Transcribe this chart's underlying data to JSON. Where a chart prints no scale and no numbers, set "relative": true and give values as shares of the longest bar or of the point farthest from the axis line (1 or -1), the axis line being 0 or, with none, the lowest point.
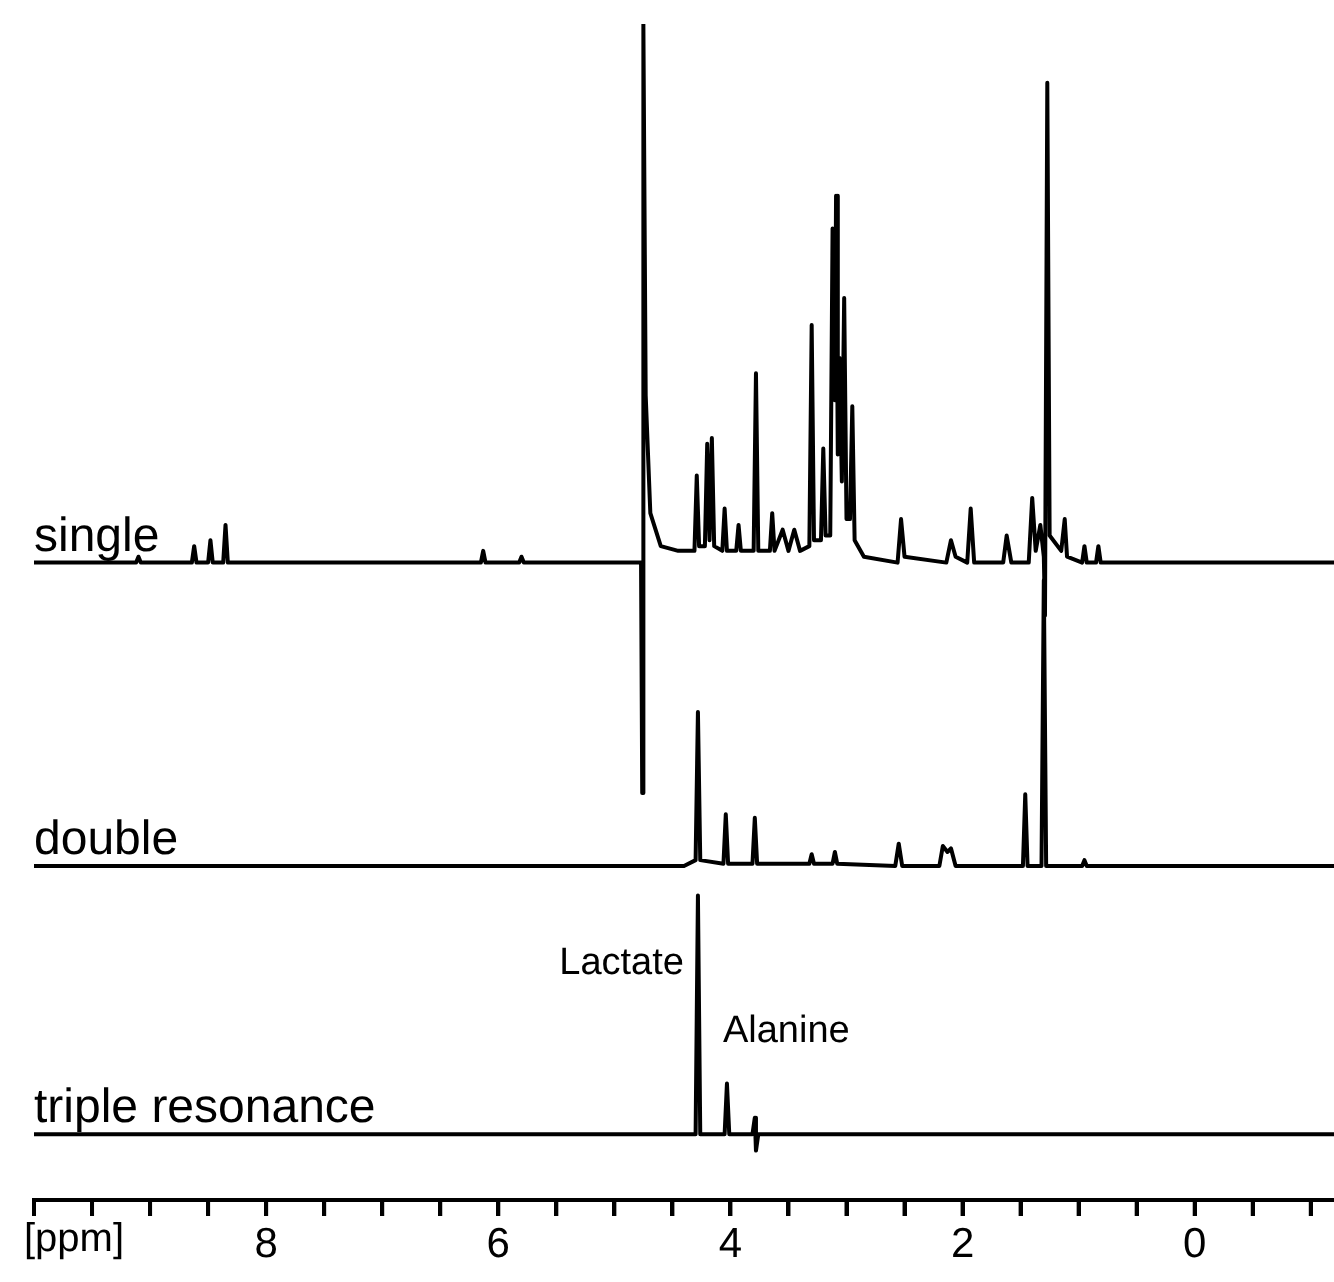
{
  "chart_data": {
    "type": "line",
    "relative": true,
    "xlim": [
      10,
      -1.2
    ],
    "tick_labels": "x",
    "grid": false,
    "legend": false,
    "marker": "none",
    "line_style": "solid",
    "xlabel": "[ppm]",
    "xticks": [
      {
        "value": 10,
        "label": null
      },
      {
        "value": 9.5,
        "label": null
      },
      {
        "value": 9,
        "label": null
      },
      {
        "value": 8.5,
        "label": null
      },
      8,
      {
        "value": 7.5,
        "label": null
      },
      {
        "value": 7,
        "label": null
      },
      {
        "value": 6.5,
        "label": null
      },
      6,
      {
        "value": 5.5,
        "label": null
      },
      {
        "value": 5,
        "label": null
      },
      {
        "value": 4.5,
        "label": null
      },
      4,
      {
        "value": 3.5,
        "label": null
      },
      {
        "value": 3,
        "label": null
      },
      {
        "value": 2.5,
        "label": null
      },
      2,
      {
        "value": 1.5,
        "label": null
      },
      {
        "value": 1,
        "label": null
      },
      {
        "value": 0.5,
        "label": null
      },
      0,
      {
        "value": -0.5,
        "label": null
      },
      {
        "value": -1,
        "label": null
      }
    ],
    "annotations": [
      {
        "text": "Lactate",
        "x": 4.28,
        "y": 0.259
      },
      {
        "text": "Alanine",
        "x": 4.03,
        "y": 0.099
      }
    ],
    "series": [
      {
        "name": "single",
        "color": "#000000",
        "x": [
          10,
          9.12,
          9.1,
          9.08,
          8.64,
          8.62,
          8.6,
          8.5,
          8.48,
          8.46,
          8.37,
          8.35,
          8.33,
          6.15,
          6.13,
          6.11,
          5.82,
          5.8,
          5.78,
          4.77,
          4.76,
          4.75,
          4.73,
          4.69,
          4.6,
          4.45,
          4.31,
          4.29,
          4.27,
          4.22,
          4.2,
          4.18,
          4.16,
          4.14,
          4.07,
          4.05,
          4.03,
          3.95,
          3.93,
          3.91,
          3.8,
          3.78,
          3.76,
          3.66,
          3.64,
          3.62,
          3.55,
          3.5,
          3.45,
          3.4,
          3.32,
          3.3,
          3.28,
          3.22,
          3.2,
          3.18,
          3.14,
          3.12,
          3.1,
          3.09,
          3.075,
          3.06,
          3.04,
          3.02,
          3.0,
          2.97,
          2.95,
          2.93,
          2.85,
          2.56,
          2.53,
          2.5,
          2.14,
          2.1,
          2.06,
          1.96,
          1.93,
          1.9,
          1.65,
          1.62,
          1.58,
          1.43,
          1.4,
          1.37,
          1.33,
          1.3,
          1.29,
          1.27,
          1.25,
          1.15,
          1.12,
          1.1,
          0.97,
          0.95,
          0.93,
          0.85,
          0.83,
          0.81,
          -1.2
        ],
        "values": [
          0.542,
          0.542,
          0.547,
          0.542,
          0.542,
          0.556,
          0.542,
          0.542,
          0.561,
          0.542,
          0.542,
          0.574,
          0.542,
          0.542,
          0.552,
          0.542,
          0.542,
          0.547,
          0.542,
          0.542,
          0.346,
          1.0,
          0.684,
          0.584,
          0.556,
          0.552,
          0.552,
          0.616,
          0.556,
          0.556,
          0.643,
          0.561,
          0.648,
          0.556,
          0.552,
          0.588,
          0.552,
          0.552,
          0.574,
          0.552,
          0.552,
          0.703,
          0.552,
          0.552,
          0.584,
          0.552,
          0.57,
          0.552,
          0.57,
          0.552,
          0.556,
          0.744,
          0.561,
          0.561,
          0.639,
          0.565,
          0.565,
          0.826,
          0.68,
          0.854,
          0.634,
          0.716,
          0.611,
          0.767,
          0.579,
          0.579,
          0.675,
          0.561,
          0.547,
          0.542,
          0.579,
          0.547,
          0.542,
          0.561,
          0.547,
          0.542,
          0.588,
          0.542,
          0.542,
          0.565,
          0.542,
          0.542,
          0.597,
          0.552,
          0.574,
          0.547,
          0.497,
          0.95,
          0.565,
          0.552,
          0.579,
          0.547,
          0.542,
          0.556,
          0.542,
          0.542,
          0.556,
          0.542,
          0.542
        ]
      },
      {
        "name": "double",
        "color": "#000000",
        "x": [
          10,
          4.4,
          4.3,
          4.28,
          4.26,
          4.06,
          4.04,
          4.02,
          3.81,
          3.79,
          3.77,
          3.32,
          3.3,
          3.28,
          3.12,
          3.1,
          3.08,
          2.58,
          2.55,
          2.52,
          2.2,
          2.17,
          2.13,
          2.1,
          2.06,
          1.48,
          1.46,
          1.44,
          1.32,
          1.3,
          1.28,
          0.97,
          0.95,
          0.93,
          -1.2
        ],
        "values": [
          0.284,
          0.284,
          0.289,
          0.415,
          0.289,
          0.286,
          0.328,
          0.286,
          0.286,
          0.325,
          0.286,
          0.286,
          0.294,
          0.286,
          0.286,
          0.296,
          0.286,
          0.284,
          0.303,
          0.284,
          0.284,
          0.301,
          0.296,
          0.299,
          0.284,
          0.284,
          0.345,
          0.284,
          0.284,
          0.527,
          0.284,
          0.284,
          0.289,
          0.284,
          0.284
        ]
      },
      {
        "name": "triple resonance",
        "color": "#000000",
        "x": [
          10,
          4.3,
          4.28,
          4.26,
          4.05,
          4.03,
          4.01,
          3.81,
          3.79,
          3.78,
          3.76,
          -1.2
        ],
        "values": [
          0.056,
          0.056,
          0.259,
          0.056,
          0.056,
          0.099,
          0.056,
          0.056,
          0.07,
          0.042,
          0.056,
          0.056
        ]
      }
    ]
  }
}
